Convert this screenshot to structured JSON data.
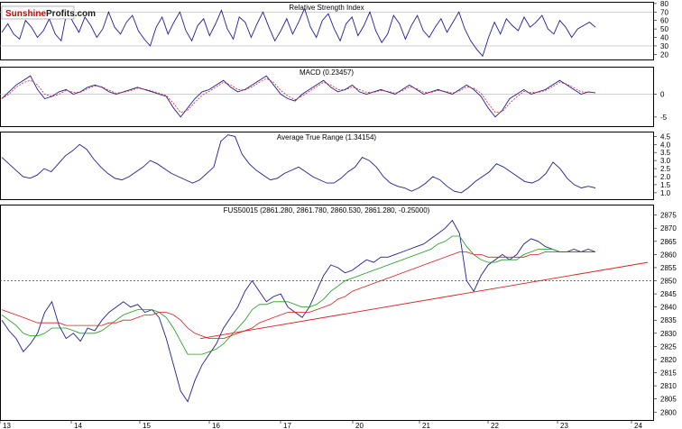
{
  "logo": {
    "text_a": "Sunshine",
    "text_b": "Profits",
    "text_c": ".com",
    "color_a": "#cc0000",
    "color_b": "#1a1a1a"
  },
  "colors": {
    "blue": "#1f1f8f",
    "red": "#d42020",
    "green": "#1a9a1a",
    "grid": "#b5b5b5",
    "frame": "#000000"
  },
  "chart_data": [
    {
      "type": "line",
      "title": "Relative Strength Index",
      "ylim": [
        14,
        82
      ],
      "yticks": [
        "80",
        "70",
        "60",
        "50",
        "40",
        "30",
        "20"
      ],
      "reference_lines": [
        70,
        30
      ],
      "series": [
        {
          "values": [
            46,
            56,
            44,
            38,
            60,
            52,
            40,
            48,
            62,
            44,
            36,
            72,
            58,
            46,
            64,
            54,
            40,
            50,
            70,
            52,
            44,
            58,
            66,
            48,
            38,
            30,
            52,
            64,
            44,
            58,
            70,
            48,
            36,
            54,
            62,
            42,
            56,
            72,
            50,
            38,
            64,
            58,
            40,
            56,
            70,
            52,
            36,
            48,
            62,
            44,
            58,
            74,
            52,
            40,
            60,
            68,
            50,
            36,
            56,
            64,
            42,
            54,
            70,
            48,
            34,
            44,
            66,
            56,
            38,
            54,
            66,
            48,
            40,
            52,
            62,
            46,
            58,
            70,
            50,
            36,
            26,
            18,
            40,
            58,
            44,
            62,
            54,
            48,
            64,
            52,
            58,
            66,
            50,
            44,
            60,
            52,
            40,
            50,
            54,
            58,
            52
          ]
        }
      ]
    },
    {
      "type": "line",
      "title": "MACD (0.23457)",
      "ylim": [
        -7,
        6
      ],
      "yticks": [
        "0",
        "-5"
      ],
      "reference_lines": [
        0
      ],
      "series": [
        {
          "values": [
            -1,
            0.5,
            2,
            3,
            4,
            1,
            -1,
            -0.5,
            0.5,
            1,
            0,
            0.5,
            1.5,
            2,
            1.5,
            0.5,
            0,
            0.5,
            1,
            1.5,
            1,
            0.5,
            0,
            -0.5,
            -3,
            -5,
            -3,
            -1,
            0.5,
            1,
            2,
            3,
            1.5,
            0.5,
            1,
            2,
            3,
            4,
            2,
            0,
            -1,
            -1.5,
            0,
            1,
            2,
            3,
            1.5,
            0.5,
            1,
            2,
            0.5,
            0,
            0.5,
            1,
            0.5,
            0,
            1,
            2,
            1,
            0,
            0.5,
            1,
            0.5,
            0,
            1,
            2,
            1,
            -0.5,
            -3,
            -5,
            -3.5,
            -1,
            0,
            1,
            0,
            0.5,
            1,
            2,
            3,
            2,
            1,
            0,
            0.5,
            0.3
          ]
        },
        {
          "values": [
            -1,
            0,
            1.5,
            2.5,
            3,
            2,
            0,
            -0.5,
            0,
            0.8,
            0.4,
            0.4,
            1.2,
            1.8,
            1.6,
            0.8,
            0.2,
            0.4,
            0.8,
            1.3,
            1.1,
            0.7,
            0.2,
            -0.3,
            -2,
            -4,
            -3.5,
            -1.8,
            -0.2,
            0.6,
            1.6,
            2.6,
            2,
            1,
            0.9,
            1.6,
            2.6,
            3.4,
            2.6,
            0.8,
            -0.4,
            -1.2,
            -0.4,
            0.6,
            1.6,
            2.6,
            2,
            1,
            0.9,
            1.6,
            1,
            0.4,
            0.4,
            0.8,
            0.6,
            0.2,
            0.7,
            1.6,
            1.2,
            0.4,
            0.4,
            0.8,
            0.6,
            0.2,
            0.7,
            1.6,
            1.3,
            0.2,
            -2,
            -4,
            -3.8,
            -2,
            -0.6,
            0.6,
            0.3,
            0.4,
            0.8,
            1.6,
            2.6,
            2.2,
            1.4,
            0.5,
            0.4,
            0.3
          ]
        }
      ]
    },
    {
      "type": "line",
      "title": "Average True Range (1.34154)",
      "ylim": [
        0.6,
        4.8
      ],
      "yticks": [
        "4.5",
        "4.0",
        "3.5",
        "3.0",
        "2.5",
        "2.0",
        "1.5",
        "1.0"
      ],
      "series": [
        {
          "values": [
            3.2,
            2.8,
            2.4,
            2.0,
            1.9,
            2.1,
            2.5,
            2.3,
            2.8,
            3.3,
            3.6,
            4.0,
            3.7,
            3.1,
            2.6,
            2.2,
            1.9,
            1.8,
            2.0,
            2.3,
            2.6,
            3.0,
            2.8,
            2.5,
            2.2,
            2.0,
            1.8,
            1.6,
            1.8,
            2.2,
            2.6,
            4.2,
            4.6,
            4.5,
            3.4,
            2.8,
            2.4,
            2.1,
            1.8,
            1.9,
            2.2,
            2.4,
            2.6,
            2.3,
            2.0,
            1.8,
            1.6,
            1.6,
            1.9,
            2.3,
            2.6,
            3.2,
            3.0,
            2.6,
            2.0,
            1.6,
            1.4,
            1.3,
            1.1,
            1.3,
            1.6,
            2.0,
            1.8,
            1.4,
            1.1,
            1.0,
            1.3,
            1.7,
            2.0,
            2.3,
            2.8,
            2.6,
            2.3,
            2.0,
            1.7,
            1.6,
            1.8,
            2.2,
            2.9,
            2.5,
            1.9,
            1.5,
            1.3,
            1.4,
            1.3
          ]
        }
      ]
    },
    {
      "type": "line",
      "title": "FUS50015 (2861.280, 2861.780, 2860.530, 2861.280, -0.25000)",
      "ylim": [
        2797,
        2879
      ],
      "yticks": [
        "2875",
        "2870",
        "2865",
        "2860",
        "2855",
        "2850",
        "2845",
        "2840",
        "2835",
        "2830",
        "2825",
        "2820",
        "2815",
        "2810",
        "2805",
        "2800"
      ],
      "xticks": [
        "13",
        "14",
        "15",
        "16",
        "17",
        "20",
        "21",
        "22",
        "23",
        "24"
      ],
      "reference_lines": [
        2850
      ],
      "trendline": [
        [
          2828,
          2857
        ]
      ],
      "series": [
        {
          "values": [
            2835,
            2831,
            2828,
            2823,
            2826,
            2830,
            2838,
            2842,
            2833,
            2828,
            2830,
            2827,
            2832,
            2831,
            2835,
            2838,
            2840,
            2842,
            2840,
            2841,
            2838,
            2839,
            2836,
            2828,
            2818,
            2808,
            2804,
            2812,
            2818,
            2822,
            2826,
            2832,
            2836,
            2840,
            2846,
            2850,
            2846,
            2842,
            2844,
            2845,
            2840,
            2838,
            2836,
            2840,
            2846,
            2852,
            2856,
            2855,
            2853,
            2854,
            2856,
            2858,
            2857,
            2859,
            2859,
            2860,
            2861,
            2862,
            2863,
            2864,
            2866,
            2868,
            2870,
            2873,
            2868,
            2850,
            2846,
            2852,
            2856,
            2858,
            2860,
            2858,
            2860,
            2864,
            2866,
            2865,
            2863,
            2862,
            2861,
            2861,
            2862,
            2861,
            2862,
            2861
          ]
        },
        {
          "values": [
            2837,
            2835,
            2833,
            2830,
            2829,
            2829,
            2830,
            2832,
            2832,
            2832,
            2831,
            2830,
            2830,
            2830,
            2831,
            2833,
            2835,
            2837,
            2838,
            2839,
            2839,
            2839,
            2838,
            2836,
            2832,
            2827,
            2822,
            2822,
            2822,
            2823,
            2824,
            2826,
            2829,
            2832,
            2835,
            2839,
            2841,
            2841,
            2842,
            2842,
            2842,
            2841,
            2840,
            2840,
            2841,
            2843,
            2846,
            2848,
            2850,
            2851,
            2852,
            2853,
            2854,
            2855,
            2856,
            2857,
            2858,
            2859,
            2860,
            2861,
            2862,
            2864,
            2865,
            2867,
            2867,
            2863,
            2860,
            2858,
            2857,
            2857,
            2858,
            2858,
            2858,
            2860,
            2861,
            2862,
            2862,
            2862,
            2861,
            2861,
            2861,
            2861,
            2861,
            2861
          ]
        },
        {
          "values": [
            2839,
            2838,
            2837,
            2836,
            2835,
            2834,
            2834,
            2834,
            2834,
            2833,
            2833,
            2833,
            2833,
            2833,
            2833,
            2834,
            2834,
            2835,
            2835,
            2836,
            2837,
            2837,
            2838,
            2838,
            2837,
            2835,
            2832,
            2830,
            2829,
            2828,
            2828,
            2828,
            2829,
            2830,
            2831,
            2832,
            2834,
            2835,
            2836,
            2837,
            2838,
            2838,
            2838,
            2838,
            2839,
            2840,
            2841,
            2843,
            2844,
            2846,
            2847,
            2848,
            2849,
            2850,
            2851,
            2852,
            2853,
            2854,
            2855,
            2856,
            2857,
            2858,
            2859,
            2860,
            2861,
            2861,
            2860,
            2860,
            2859,
            2859,
            2859,
            2859,
            2859,
            2859,
            2860,
            2860,
            2861,
            2861,
            2861,
            2861,
            2861,
            2861,
            2861,
            2861
          ]
        }
      ]
    }
  ]
}
